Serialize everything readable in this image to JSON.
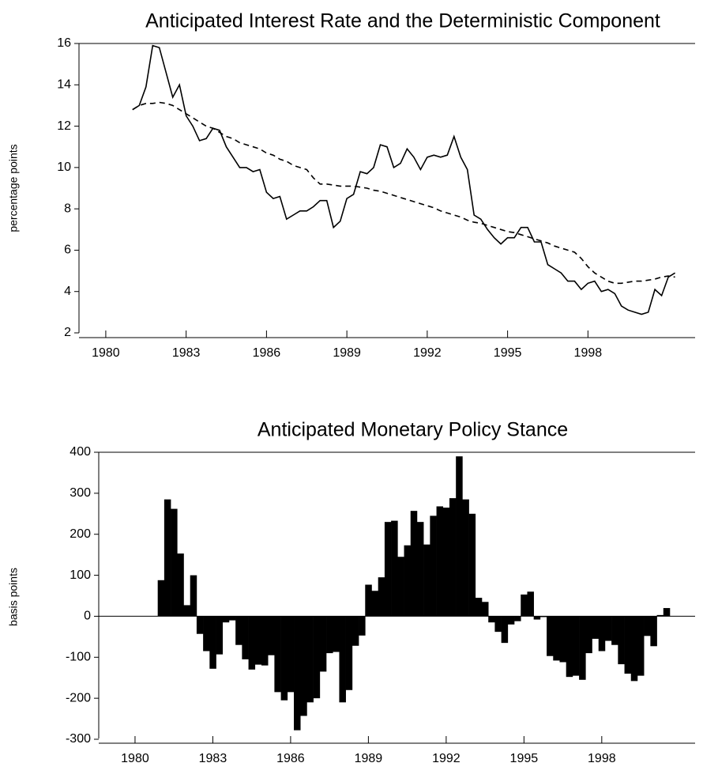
{
  "chart_data": [
    {
      "type": "line",
      "title": "Anticipated Interest Rate and the Deterministic Component",
      "y_label": "percentage points",
      "x": [
        1981,
        1981.25,
        1981.5,
        1981.75,
        1982,
        1982.25,
        1982.5,
        1982.75,
        1983,
        1983.25,
        1983.5,
        1983.75,
        1984,
        1984.25,
        1984.5,
        1984.75,
        1985,
        1985.25,
        1985.5,
        1985.75,
        1986,
        1986.25,
        1986.5,
        1986.75,
        1987,
        1987.25,
        1987.5,
        1987.75,
        1988,
        1988.25,
        1988.5,
        1988.75,
        1989,
        1989.25,
        1989.5,
        1989.75,
        1990,
        1990.25,
        1990.5,
        1990.75,
        1991,
        1991.25,
        1991.5,
        1991.75,
        1992,
        1992.25,
        1992.5,
        1992.75,
        1993,
        1993.25,
        1993.5,
        1993.75,
        1994,
        1994.25,
        1994.5,
        1994.75,
        1995,
        1995.25,
        1995.5,
        1995.75,
        1996,
        1996.25,
        1996.5,
        1996.75,
        1997,
        1997.25,
        1997.5,
        1997.75,
        1998,
        1998.25,
        1998.5,
        1998.75,
        1999,
        1999.25,
        1999.5,
        1999.75,
        2000,
        2000.25,
        2000.5,
        2000.75,
        2001,
        2001.25
      ],
      "series": [
        {
          "color": "#000000",
          "dash": "solid",
          "values": [
            12.8,
            13.0,
            13.9,
            15.9,
            15.8,
            14.6,
            13.4,
            14.0,
            12.5,
            12.0,
            11.3,
            11.4,
            11.9,
            11.8,
            11.0,
            10.5,
            10.0,
            10.0,
            9.8,
            9.9,
            8.8,
            8.5,
            8.6,
            7.5,
            7.7,
            7.9,
            7.9,
            8.1,
            8.4,
            8.4,
            7.1,
            7.4,
            8.5,
            8.7,
            9.8,
            9.7,
            10.0,
            11.1,
            11.0,
            10.0,
            10.2,
            10.9,
            10.5,
            9.9,
            10.5,
            10.6,
            10.5,
            10.6,
            11.5,
            10.5,
            9.9,
            7.7,
            7.5,
            7.0,
            6.6,
            6.3,
            6.6,
            6.6,
            7.1,
            7.1,
            6.4,
            6.4,
            5.3,
            5.1,
            4.9,
            4.5,
            4.5,
            4.1,
            4.4,
            4.5,
            4.0,
            4.1,
            3.9,
            3.3,
            3.1,
            3.0,
            2.9,
            3.0,
            4.1,
            3.8,
            4.7,
            4.9
          ]
        },
        {
          "color": "#000000",
          "dash": "dashed",
          "values": [
            12.8,
            13.0,
            13.1,
            13.1,
            13.15,
            13.1,
            13.0,
            12.8,
            12.6,
            12.4,
            12.2,
            12.0,
            11.9,
            11.7,
            11.5,
            11.4,
            11.2,
            11.1,
            11.0,
            10.9,
            10.7,
            10.6,
            10.4,
            10.3,
            10.1,
            10.0,
            9.9,
            9.5,
            9.2,
            9.2,
            9.15,
            9.1,
            9.1,
            9.1,
            9.05,
            9.0,
            8.9,
            8.85,
            8.75,
            8.65,
            8.55,
            8.45,
            8.35,
            8.25,
            8.15,
            8.05,
            7.9,
            7.8,
            7.7,
            7.6,
            7.45,
            7.35,
            7.3,
            7.2,
            7.1,
            7.0,
            6.9,
            6.85,
            6.75,
            6.65,
            6.55,
            6.45,
            6.35,
            6.2,
            6.1,
            6.0,
            5.9,
            5.6,
            5.2,
            4.9,
            4.7,
            4.5,
            4.4,
            4.4,
            4.45,
            4.5,
            4.5,
            4.55,
            4.6,
            4.7,
            4.75,
            4.7
          ]
        }
      ],
      "xlim": [
        1979,
        2002
      ],
      "xticks": [
        1980,
        1983,
        1986,
        1989,
        1992,
        1995,
        1998
      ],
      "ylim": [
        2,
        16
      ],
      "yticks": [
        2,
        4,
        6,
        8,
        10,
        12,
        14,
        16
      ]
    },
    {
      "type": "bar",
      "title": "Anticipated Monetary Policy Stance",
      "y_label": "basis points",
      "color": "#000000",
      "x": [
        1981,
        1981.25,
        1981.5,
        1981.75,
        1982,
        1982.25,
        1982.5,
        1982.75,
        1983,
        1983.25,
        1983.5,
        1983.75,
        1984,
        1984.25,
        1984.5,
        1984.75,
        1985,
        1985.25,
        1985.5,
        1985.75,
        1986,
        1986.25,
        1986.5,
        1986.75,
        1987,
        1987.25,
        1987.5,
        1987.75,
        1988,
        1988.25,
        1988.5,
        1988.75,
        1989,
        1989.25,
        1989.5,
        1989.75,
        1990,
        1990.25,
        1990.5,
        1990.75,
        1991,
        1991.25,
        1991.5,
        1991.75,
        1992,
        1992.25,
        1992.5,
        1992.75,
        1993,
        1993.25,
        1993.5,
        1993.75,
        1994,
        1994.25,
        1994.5,
        1994.75,
        1995,
        1995.25,
        1995.5,
        1995.75,
        1996,
        1996.25,
        1996.5,
        1996.75,
        1997,
        1997.25,
        1997.5,
        1997.75,
        1998,
        1998.25,
        1998.5,
        1998.75,
        1999,
        1999.25,
        1999.5,
        1999.75,
        2000,
        2000.25,
        2000.5
      ],
      "values": [
        88,
        285,
        262,
        153,
        27,
        100,
        -43,
        -85,
        -128,
        -93,
        -15,
        -10,
        -70,
        -105,
        -130,
        -118,
        -120,
        -95,
        -185,
        -205,
        -185,
        -278,
        -243,
        -210,
        -200,
        -135,
        -90,
        -87,
        -210,
        -180,
        -72,
        -47,
        77,
        62,
        95,
        230,
        233,
        145,
        173,
        257,
        230,
        175,
        245,
        268,
        265,
        288,
        390,
        285,
        250,
        45,
        35,
        -15,
        -38,
        -65,
        -20,
        -12,
        53,
        60,
        -8,
        -2,
        -97,
        -108,
        -112,
        -148,
        -145,
        -155,
        -90,
        -55,
        -85,
        -60,
        -70,
        -117,
        -140,
        -158,
        -145,
        -48,
        -73,
        3,
        20
      ],
      "xlim": [
        1978.6,
        2001.6
      ],
      "xticks": [
        1980,
        1983,
        1986,
        1989,
        1992,
        1995,
        1998
      ],
      "ylim": [
        -300,
        400
      ],
      "yticks": [
        -300,
        -200,
        -100,
        0,
        100,
        200,
        300,
        400
      ]
    }
  ]
}
